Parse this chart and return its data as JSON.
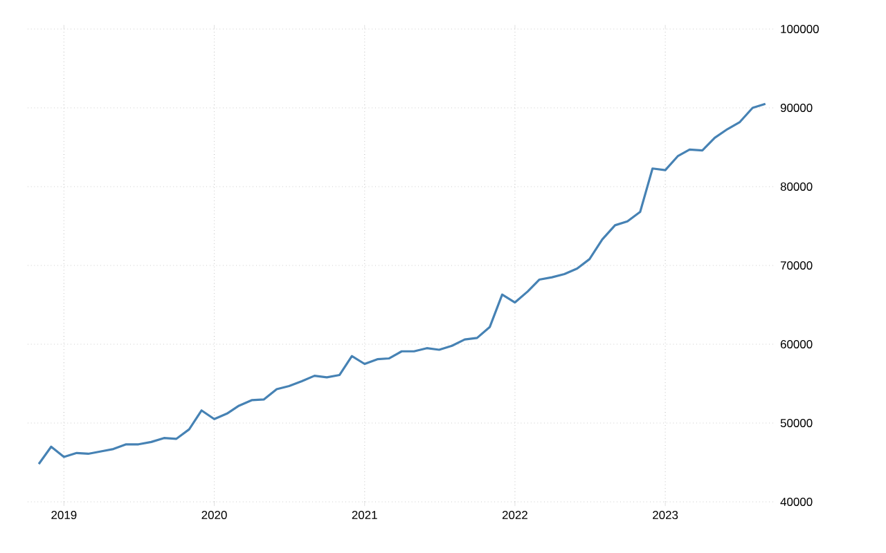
{
  "chart_data": {
    "type": "line",
    "x": [
      "2018-11",
      "2018-12",
      "2019-01",
      "2019-02",
      "2019-03",
      "2019-04",
      "2019-05",
      "2019-06",
      "2019-07",
      "2019-08",
      "2019-09",
      "2019-10",
      "2019-11",
      "2019-12",
      "2020-01",
      "2020-02",
      "2020-03",
      "2020-04",
      "2020-05",
      "2020-06",
      "2020-07",
      "2020-08",
      "2020-09",
      "2020-10",
      "2020-11",
      "2020-12",
      "2021-01",
      "2021-02",
      "2021-03",
      "2021-04",
      "2021-05",
      "2021-06",
      "2021-07",
      "2021-08",
      "2021-09",
      "2021-10",
      "2021-11",
      "2021-12",
      "2022-01",
      "2022-02",
      "2022-03",
      "2022-04",
      "2022-05",
      "2022-06",
      "2022-07",
      "2022-08",
      "2022-09",
      "2022-10",
      "2022-11",
      "2022-12",
      "2023-01",
      "2023-02",
      "2023-03",
      "2023-04",
      "2023-05",
      "2023-06",
      "2023-07",
      "2023-08",
      "2023-09"
    ],
    "series": [
      {
        "color": "#4682b4",
        "values": [
          44800,
          47000,
          45700,
          46200,
          46100,
          46400,
          46700,
          47300,
          47300,
          47600,
          48100,
          48000,
          49200,
          51600,
          50500,
          51200,
          52200,
          52900,
          53000,
          54300,
          54700,
          55300,
          56000,
          55800,
          56100,
          58500,
          57500,
          58100,
          58200,
          59100,
          59100,
          59500,
          59300,
          59800,
          60600,
          60800,
          62200,
          66300,
          65300,
          66700,
          68200,
          68500,
          68900,
          69600,
          70800,
          73300,
          75100,
          75600,
          76800,
          82300,
          82100,
          83900,
          84700,
          84600,
          86200,
          87300,
          88200,
          90000,
          90500
        ]
      }
    ],
    "xlim": [
      "2018-10-05",
      "2023-09-25"
    ],
    "xticks": [
      {
        "value": "2019-01-01",
        "label": "2019"
      },
      {
        "value": "2020-01-01",
        "label": "2020"
      },
      {
        "value": "2021-01-01",
        "label": "2021"
      },
      {
        "value": "2022-01-01",
        "label": "2022"
      },
      {
        "value": "2023-01-01",
        "label": "2023"
      }
    ],
    "ylim": [
      40000,
      100000
    ],
    "yticks": [
      40000,
      50000,
      60000,
      70000,
      80000,
      90000,
      100000
    ],
    "grid": true,
    "line_style": "solid"
  }
}
